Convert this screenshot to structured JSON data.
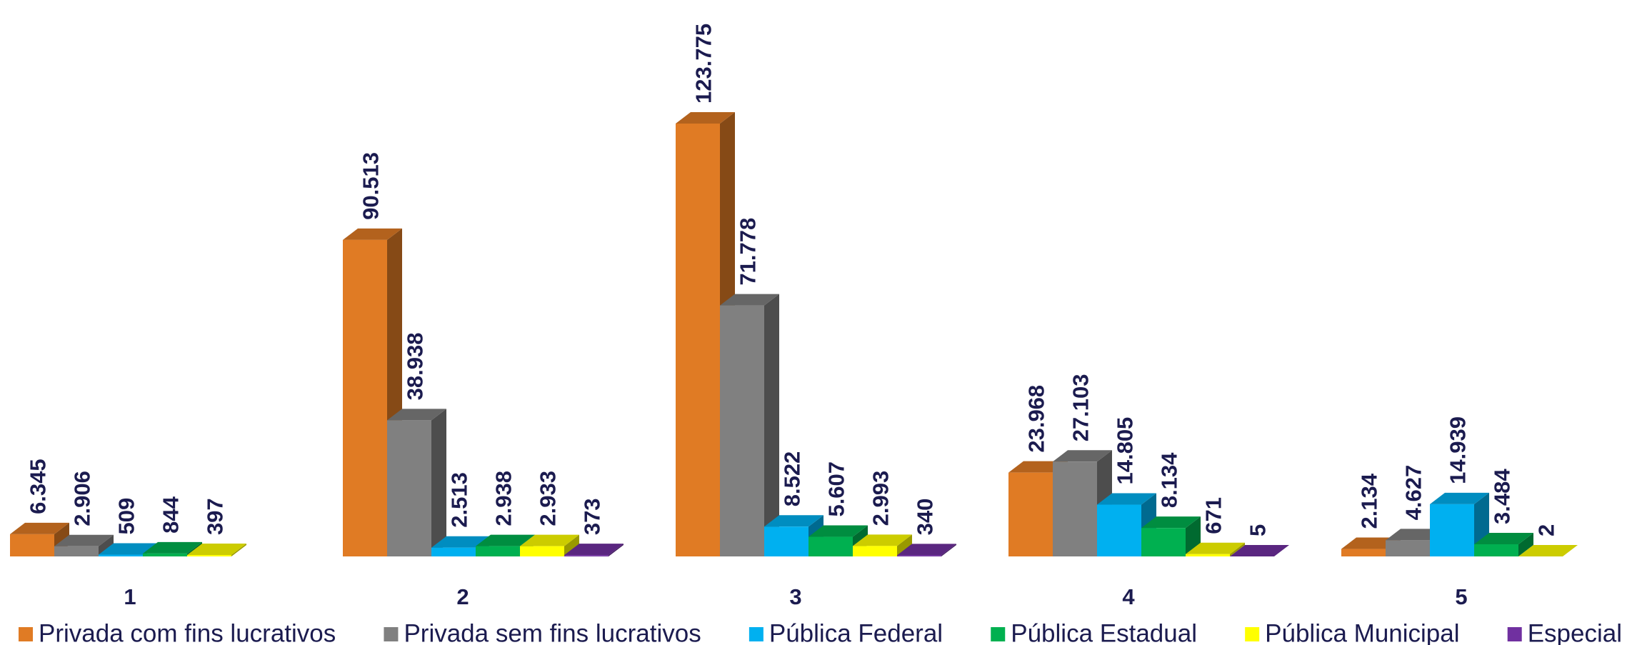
{
  "chart_data": {
    "type": "bar3d",
    "categories": [
      "1",
      "2",
      "3",
      "4",
      "5"
    ],
    "series": [
      {
        "name": "Privada com fins lucrativos",
        "color": "#e07b24",
        "values": [
          6345,
          90513,
          123775,
          23968,
          2134
        ],
        "value_labels": [
          "6.345",
          "90.513",
          "123.775",
          "23.968",
          "2.134"
        ]
      },
      {
        "name": "Privada sem fins lucrativos",
        "color": "#808080",
        "values": [
          2906,
          38938,
          71778,
          27103,
          4627
        ],
        "value_labels": [
          "2.906",
          "38.938",
          "71.778",
          "27.103",
          "4.627"
        ]
      },
      {
        "name": "Pública Federal",
        "color": "#00b0f0",
        "values": [
          509,
          2513,
          8522,
          14805,
          14939
        ],
        "value_labels": [
          "509",
          "2.513",
          "8.522",
          "14.805",
          "14.939"
        ]
      },
      {
        "name": "Pública Estadual",
        "color": "#00b050",
        "values": [
          844,
          2938,
          5607,
          8134,
          3484
        ],
        "value_labels": [
          "844",
          "2.938",
          "5.607",
          "8.134",
          "3.484"
        ]
      },
      {
        "name": "Pública Municipal",
        "color": "#ffff00",
        "values": [
          397,
          2933,
          2993,
          671,
          2
        ],
        "value_labels": [
          "397",
          "2.933",
          "2.993",
          "671",
          "2"
        ]
      },
      {
        "name": "Especial",
        "color": "#7030a0",
        "values": [
          null,
          373,
          340,
          5,
          null
        ],
        "value_labels": [
          null,
          "373",
          "340",
          "5",
          null
        ]
      }
    ],
    "legend": "bottom"
  }
}
